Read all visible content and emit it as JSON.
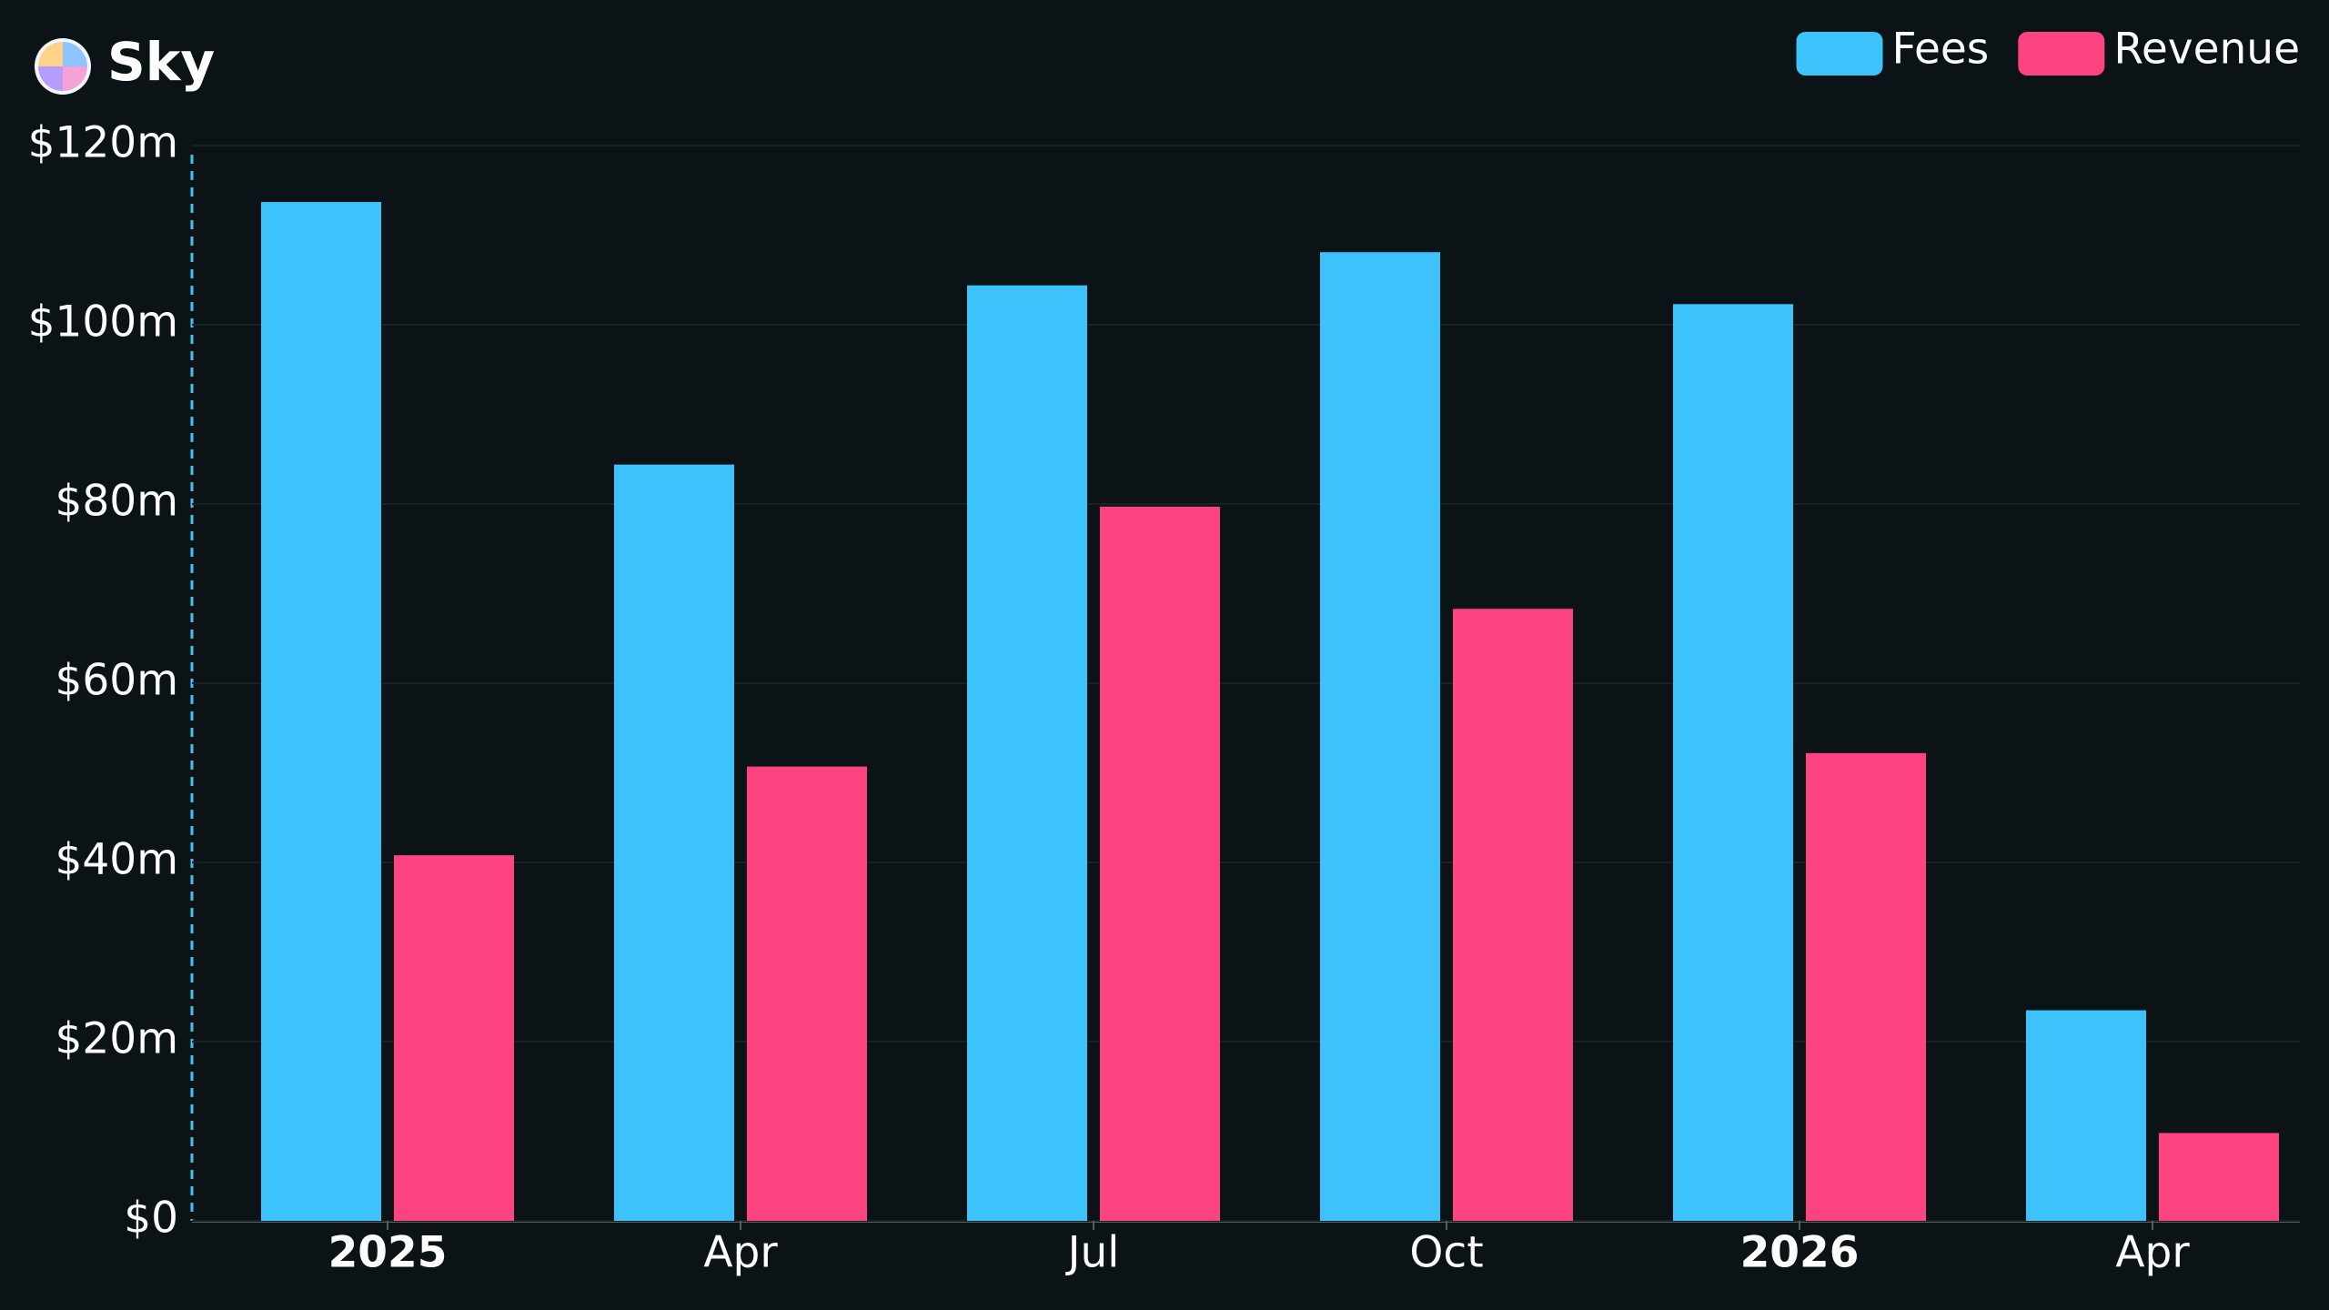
{
  "chart_data": {
    "type": "bar",
    "title": "Sky",
    "categories": [
      "2025",
      "Apr",
      "Jul",
      "Oct",
      "2026",
      "Apr"
    ],
    "series": [
      {
        "name": "Fees",
        "color": "#3dc3fc",
        "values": [
          113.7,
          84.4,
          104.4,
          108.1,
          102.3,
          23.5
        ]
      },
      {
        "name": "Revenue",
        "color": "#fe4480",
        "values": [
          40.8,
          50.7,
          79.7,
          68.3,
          52.2,
          9.8
        ]
      }
    ],
    "ylim": [
      0,
      120
    ],
    "yticks": [
      {
        "value": 0,
        "label": "$0"
      },
      {
        "value": 20,
        "label": "$20m"
      },
      {
        "value": 40,
        "label": "$40m"
      },
      {
        "value": 60,
        "label": "$60m"
      },
      {
        "value": 80,
        "label": "$80m"
      },
      {
        "value": 100,
        "label": "$100m"
      },
      {
        "value": 120,
        "label": "$120m"
      }
    ],
    "grid": true,
    "legend": "top-right"
  }
}
